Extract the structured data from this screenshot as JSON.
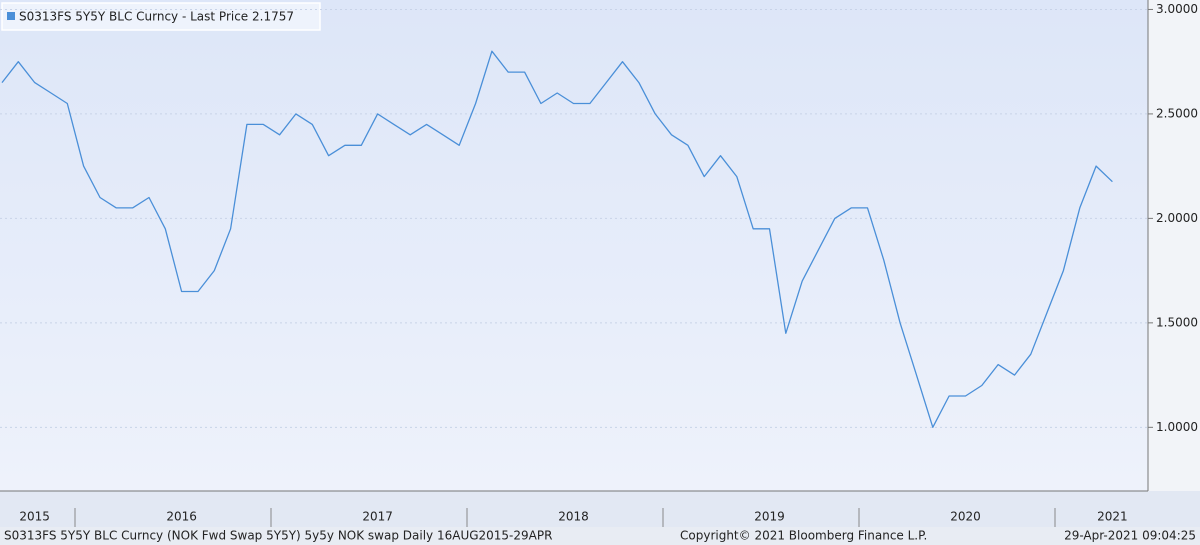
{
  "chart_data": {
    "type": "line",
    "series": [
      {
        "name": "S0313FS 5Y5Y BLC Curncy - Last Price 2.1757",
        "color": "#4a8fd8",
        "values": [
          2.65,
          2.75,
          2.65,
          2.6,
          2.55,
          2.25,
          2.1,
          2.05,
          2.05,
          2.1,
          1.95,
          1.65,
          1.65,
          1.75,
          1.95,
          2.45,
          2.45,
          2.4,
          2.5,
          2.45,
          2.3,
          2.35,
          2.35,
          2.5,
          2.45,
          2.4,
          2.45,
          2.4,
          2.35,
          2.55,
          2.8,
          2.7,
          2.7,
          2.55,
          2.6,
          2.55,
          2.55,
          2.65,
          2.75,
          2.65,
          2.5,
          2.4,
          2.35,
          2.2,
          2.3,
          2.2,
          1.95,
          1.95,
          1.45,
          1.7,
          1.85,
          2.0,
          2.05,
          2.05,
          1.8,
          1.5,
          1.25,
          1.0,
          1.15,
          1.15,
          1.2,
          1.3,
          1.25,
          1.35,
          1.55,
          1.75,
          2.05,
          2.25,
          2.1757
        ]
      }
    ],
    "categories": [
      null,
      null,
      "2015",
      null,
      null,
      null,
      null,
      null,
      null,
      null,
      null,
      "2016",
      null,
      null,
      null,
      null,
      null,
      null,
      null,
      null,
      null,
      null,
      null,
      "2017",
      null,
      null,
      null,
      null,
      null,
      null,
      null,
      null,
      null,
      null,
      null,
      "2018",
      null,
      null,
      null,
      null,
      null,
      null,
      null,
      null,
      null,
      null,
      null,
      "2019",
      null,
      null,
      null,
      null,
      null,
      null,
      null,
      null,
      null,
      null,
      null,
      "2020",
      null,
      null,
      null,
      null,
      null,
      null,
      null,
      null,
      "2021"
    ],
    "ylim": [
      0.7,
      3.05
    ],
    "yticks": [
      {
        "value": 1,
        "label": "1.0000"
      },
      {
        "value": 1.5,
        "label": "1.5000"
      },
      {
        "value": 2,
        "label": "2.0000"
      },
      {
        "value": 2.5,
        "label": "2.5000"
      },
      {
        "value": 3,
        "label": "3.0000"
      }
    ],
    "footer": {
      "description": "S0313FS 5Y5Y BLC Curncy (NOK Fwd Swap 5Y5Y) 5y5y NOK swap  Daily 16AUG2015-29APR",
      "copyright": "Copyright© 2021 Bloomberg Finance L.P.",
      "timestamp": "29-Apr-2021 09:04:25"
    }
  }
}
